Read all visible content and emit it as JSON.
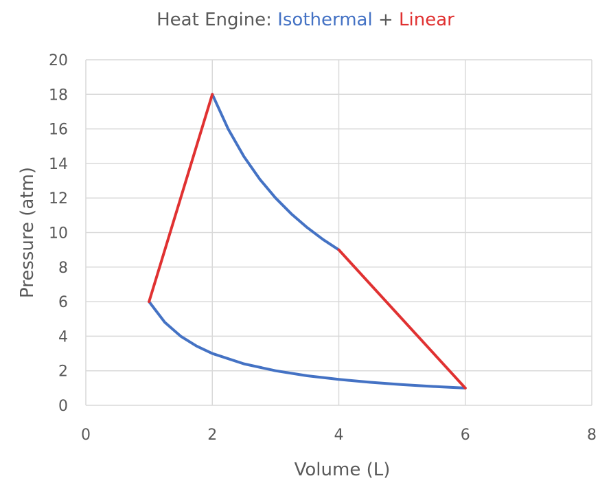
{
  "title": {
    "prefix": "Heat Engine: ",
    "part1": "Isothermal",
    "joiner": " + ",
    "part2": "Linear"
  },
  "colors": {
    "isothermal": "#4472c4",
    "linear": "#e03131",
    "text": "#595959",
    "grid": "#d9d9d9"
  },
  "chart_data": {
    "type": "line",
    "xlabel": "Volume (L)",
    "ylabel": "Pressure (atm)",
    "xlim": [
      0,
      8
    ],
    "ylim": [
      0,
      20
    ],
    "xticks": [
      0,
      2,
      4,
      6,
      8
    ],
    "yticks": [
      0,
      2,
      4,
      6,
      8,
      10,
      12,
      14,
      16,
      18,
      20
    ],
    "grid": true,
    "legend": "none",
    "series": [
      {
        "color": "#4472c4",
        "x": [
          2,
          2.25,
          2.5,
          2.75,
          3,
          3.25,
          3.5,
          3.75,
          4
        ],
        "y": [
          18,
          16,
          14.4,
          13.09,
          12,
          11.08,
          10.29,
          9.6,
          9
        ]
      },
      {
        "color": "#4472c4",
        "x": [
          1,
          1.25,
          1.5,
          1.75,
          2,
          2.5,
          3,
          3.5,
          4,
          4.5,
          5,
          5.5,
          6
        ],
        "y": [
          6,
          4.8,
          4,
          3.43,
          3,
          2.4,
          2,
          1.71,
          1.5,
          1.33,
          1.2,
          1.09,
          1
        ]
      },
      {
        "color": "#e03131",
        "x": [
          1,
          2
        ],
        "y": [
          6,
          18
        ]
      },
      {
        "color": "#e03131",
        "x": [
          4,
          6
        ],
        "y": [
          9,
          1
        ]
      }
    ]
  }
}
